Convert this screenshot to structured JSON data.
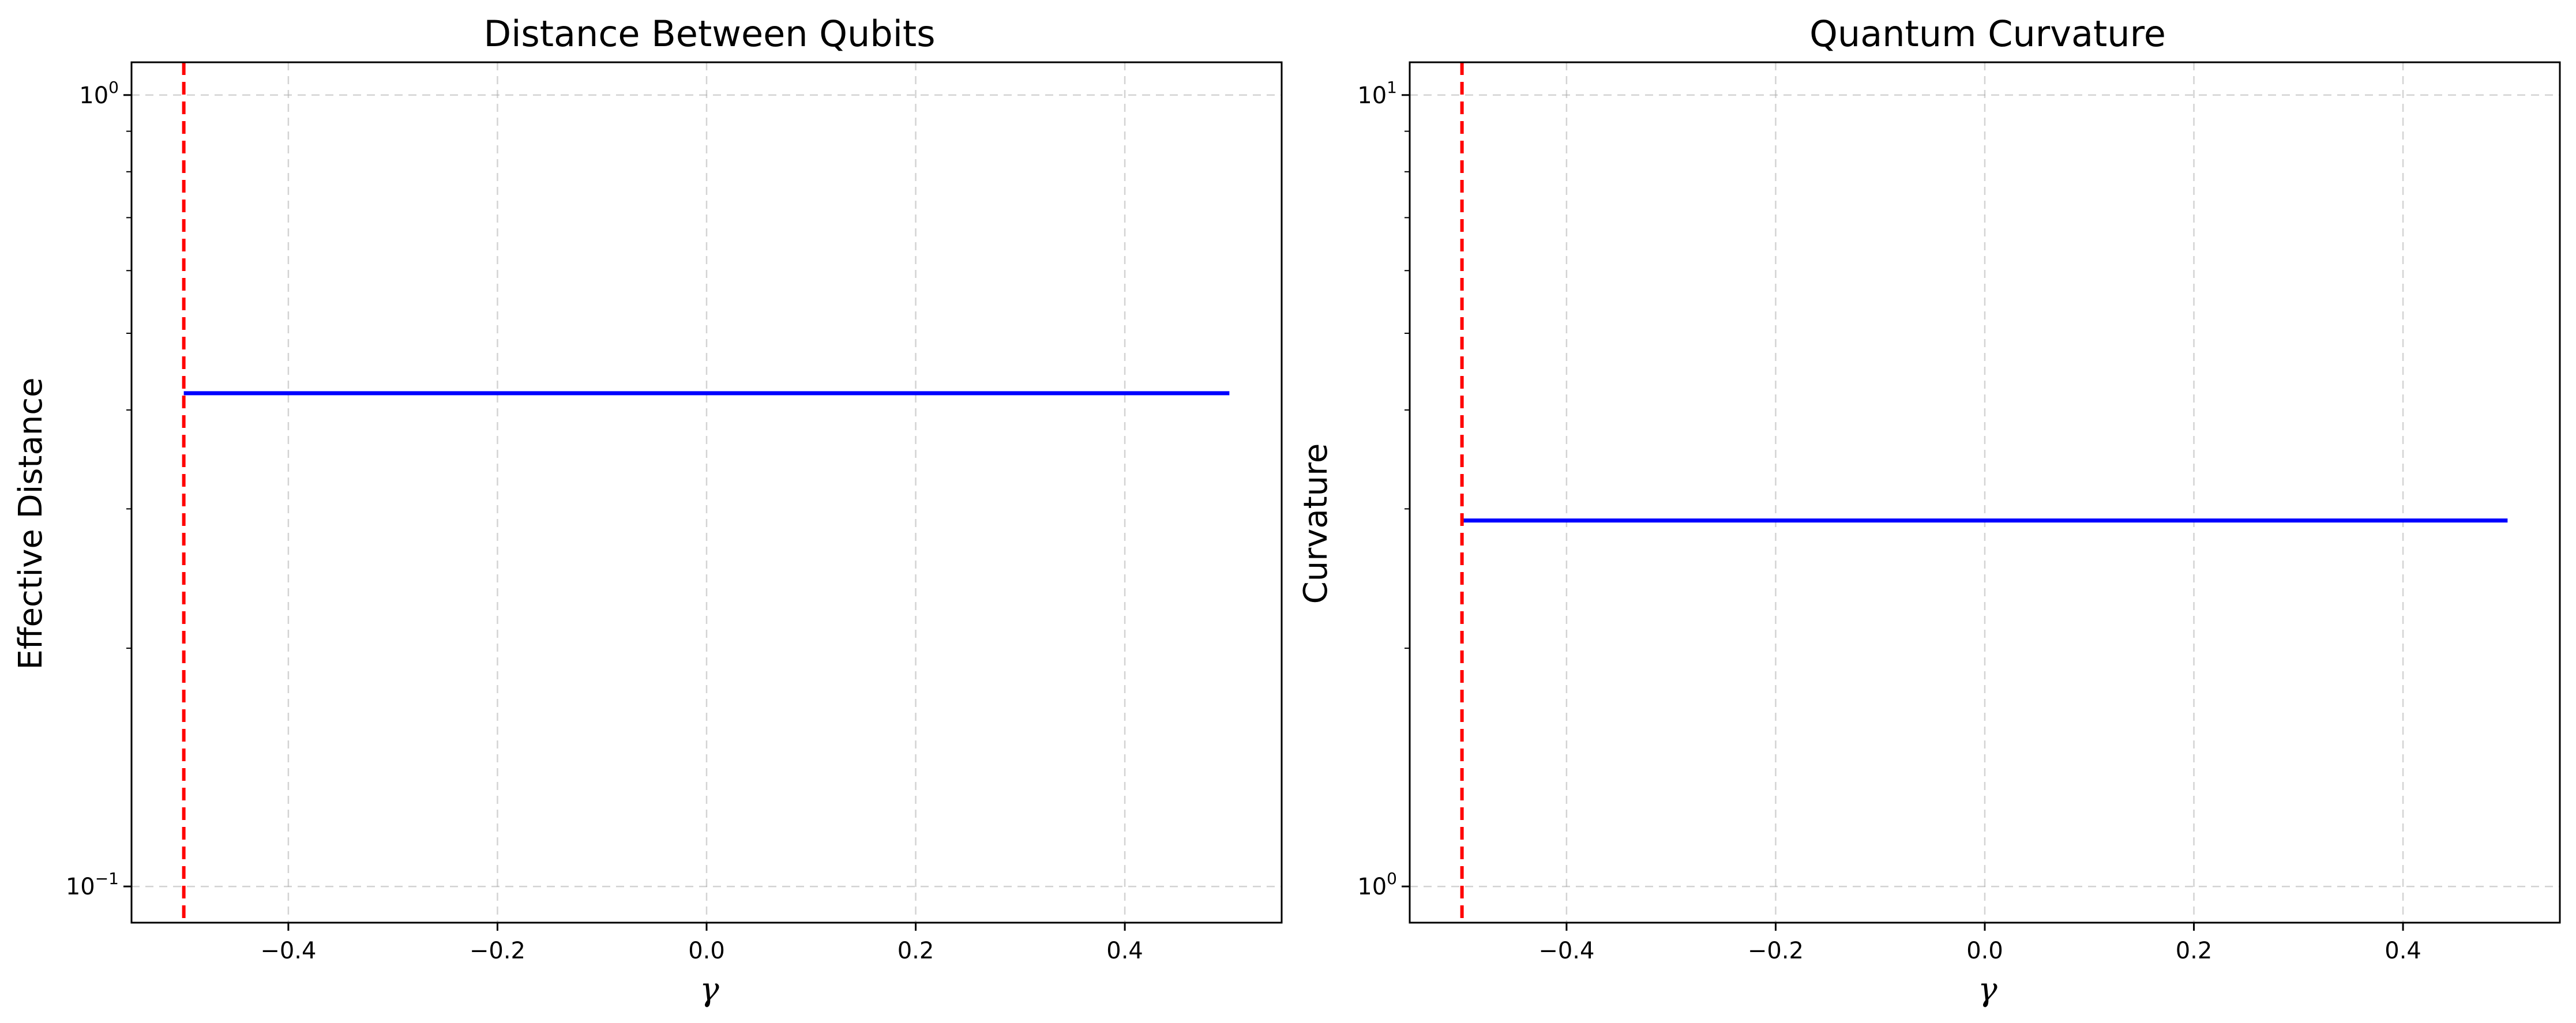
{
  "chart_data": [
    {
      "type": "line",
      "title": "Distance Between Qubits",
      "xlabel": "γ",
      "ylabel": "Effective Distance",
      "yscale": "log",
      "xlim": [
        -0.55,
        0.55
      ],
      "ylim": [
        0.09,
        1.1
      ],
      "grid": true,
      "xticks": [
        -0.4,
        -0.2,
        0.0,
        0.2,
        0.4
      ],
      "xtick_labels": [
        "−0.4",
        "−0.2",
        "0.0",
        "0.2",
        "0.4"
      ],
      "yticks": [
        0.1,
        1
      ],
      "ytick_labels": [
        {
          "base": "10",
          "exp": "−1"
        },
        {
          "base": "10",
          "exp": "0"
        }
      ],
      "series": [
        {
          "color": "#0000ff",
          "style": "solid",
          "x": [
            -0.5,
            0.5
          ],
          "y": [
            0.42,
            0.42
          ]
        }
      ],
      "vlines": [
        {
          "x": -0.5,
          "color": "#ff0000",
          "style": "dashed"
        }
      ]
    },
    {
      "type": "line",
      "title": "Quantum Curvature",
      "xlabel": "γ",
      "ylabel": "Curvature",
      "yscale": "log",
      "xlim": [
        -0.55,
        0.55
      ],
      "ylim": [
        0.9,
        11
      ],
      "grid": true,
      "xticks": [
        -0.4,
        -0.2,
        0.0,
        0.2,
        0.4
      ],
      "xtick_labels": [
        "−0.4",
        "−0.2",
        "0.0",
        "0.2",
        "0.4"
      ],
      "yticks": [
        1,
        10
      ],
      "ytick_labels": [
        {
          "base": "10",
          "exp": "0"
        },
        {
          "base": "10",
          "exp": "1"
        }
      ],
      "series": [
        {
          "color": "#0000ff",
          "style": "solid",
          "x": [
            -0.5,
            0.5
          ],
          "y": [
            2.9,
            2.9
          ]
        }
      ],
      "vlines": [
        {
          "x": -0.5,
          "color": "#ff0000",
          "style": "dashed"
        }
      ]
    }
  ]
}
